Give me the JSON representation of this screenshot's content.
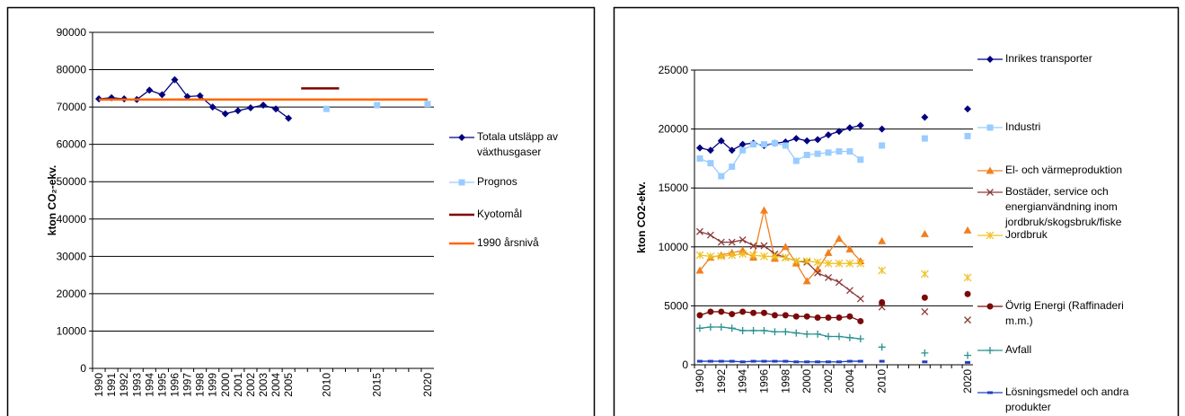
{
  "chart_data": [
    {
      "type": "line",
      "ylabel": "kton CO₂-ekv.",
      "categories": [
        "1990",
        "1991",
        "1992",
        "1993",
        "1994",
        "1995",
        "1996",
        "1997",
        "1998",
        "1999",
        "2000",
        "2001",
        "2002",
        "2003",
        "2004",
        "2005",
        null,
        null,
        "2010",
        null,
        null,
        null,
        "2015",
        null,
        null,
        null,
        "2020"
      ],
      "ylim": [
        0,
        90000
      ],
      "yticks": [
        0,
        10000,
        20000,
        30000,
        40000,
        50000,
        60000,
        70000,
        80000,
        90000
      ],
      "grid": true,
      "legend": "right",
      "series": [
        {
          "name": "Totala utsläpp av växthusgaser",
          "color": "#000080",
          "marker": "diamond",
          "line": true,
          "values": [
            72200,
            72500,
            72200,
            72000,
            74500,
            73300,
            77300,
            72800,
            73000,
            70000,
            68200,
            69000,
            69800,
            70500,
            69500,
            67000,
            null,
            null,
            null,
            null,
            null,
            null,
            null,
            null,
            null,
            null,
            null
          ]
        },
        {
          "name": "Prognos",
          "color": "#99ccff",
          "marker": "square",
          "line": false,
          "values": [
            null,
            null,
            null,
            null,
            null,
            null,
            null,
            null,
            null,
            null,
            null,
            null,
            null,
            null,
            null,
            null,
            null,
            null,
            69500,
            null,
            null,
            null,
            70500,
            null,
            null,
            null,
            70800
          ]
        },
        {
          "name": "Kyotomål",
          "color": "#800000",
          "marker": "none",
          "line": true,
          "values": [
            null,
            null,
            null,
            null,
            null,
            null,
            null,
            null,
            null,
            null,
            null,
            null,
            null,
            null,
            null,
            null,
            75000,
            75000,
            75000,
            75000,
            null,
            null,
            null,
            null,
            null,
            null,
            null
          ]
        },
        {
          "name": "1990 årsnivå",
          "color": "#ff6600",
          "marker": "none",
          "line": true,
          "values": [
            72000,
            72000,
            72000,
            72000,
            72000,
            72000,
            72000,
            72000,
            72000,
            72000,
            72000,
            72000,
            72000,
            72000,
            72000,
            72000,
            72000,
            72000,
            72000,
            72000,
            72000,
            72000,
            72000,
            72000,
            72000,
            72000,
            72000
          ]
        }
      ]
    },
    {
      "type": "line",
      "ylabel": "kton CO2-ekv.",
      "categories": [
        "1990",
        null,
        "1992",
        null,
        "1994",
        null,
        "1996",
        null,
        "1998",
        null,
        "2000",
        null,
        "2002",
        null,
        "2004",
        null,
        null,
        "2010",
        null,
        null,
        null,
        null,
        null,
        null,
        null,
        "2020"
      ],
      "ylim": [
        0,
        25000
      ],
      "yticks": [
        0,
        5000,
        10000,
        15000,
        20000,
        25000
      ],
      "grid": true,
      "legend": "right",
      "series": [
        {
          "name": "Inrikes transporter",
          "color": "#000080",
          "marker": "diamond",
          "line": true,
          "values": [
            18400,
            18200,
            19000,
            18200,
            18700,
            18800,
            18600,
            18800,
            18900,
            19200,
            19000,
            19100,
            19500,
            19800,
            20100,
            20300,
            null,
            20000,
            null,
            null,
            null,
            21000,
            null,
            null,
            null,
            21700
          ]
        },
        {
          "name": "Industri",
          "color": "#99ccff",
          "marker": "square",
          "line": true,
          "values": [
            17500,
            17100,
            16000,
            16800,
            18200,
            18700,
            18700,
            18800,
            18600,
            17300,
            17800,
            17900,
            18000,
            18100,
            18100,
            17400,
            null,
            18600,
            null,
            null,
            null,
            19200,
            null,
            null,
            null,
            19400
          ]
        },
        {
          "name": "El- och värmeproduktion",
          "color": "#f07f20",
          "marker": "triangle",
          "line": true,
          "values": [
            8000,
            9100,
            9300,
            9500,
            9700,
            9100,
            13100,
            9000,
            10000,
            8600,
            7100,
            8100,
            9500,
            10700,
            9800,
            8800,
            null,
            10500,
            null,
            null,
            null,
            11100,
            null,
            null,
            null,
            11400
          ]
        },
        {
          "name": "Bostäder, service och energianvändning inom jordbruk/skogsbruk/fiske",
          "color": "#8b3a3a",
          "marker": "x",
          "line": true,
          "values": [
            11300,
            11000,
            10400,
            10400,
            10600,
            10100,
            10100,
            9400,
            9100,
            8800,
            8700,
            7800,
            7400,
            7000,
            6300,
            5600,
            null,
            4900,
            null,
            null,
            null,
            4500,
            null,
            null,
            null,
            3800
          ]
        },
        {
          "name": "Jordbruk",
          "color": "#f0c020",
          "marker": "asterisk",
          "line": true,
          "values": [
            9300,
            9200,
            9200,
            9300,
            9400,
            9300,
            9200,
            9200,
            9100,
            8800,
            8800,
            8700,
            8600,
            8600,
            8600,
            8600,
            null,
            8000,
            null,
            null,
            null,
            7700,
            null,
            null,
            null,
            7400
          ]
        },
        {
          "name": "Övrig Energi (Raffinaderi m.m.)",
          "color": "#7a0a0a",
          "marker": "circle",
          "line": true,
          "values": [
            4200,
            4500,
            4500,
            4300,
            4500,
            4400,
            4400,
            4200,
            4200,
            4100,
            4100,
            4000,
            4000,
            4000,
            4100,
            3700,
            null,
            5300,
            null,
            null,
            null,
            5700,
            null,
            null,
            null,
            6000
          ]
        },
        {
          "name": "Avfall",
          "color": "#2a9090",
          "marker": "plus",
          "line": true,
          "values": [
            3100,
            3200,
            3200,
            3100,
            2900,
            2900,
            2900,
            2800,
            2800,
            2700,
            2600,
            2600,
            2400,
            2400,
            2300,
            2200,
            null,
            1500,
            null,
            null,
            null,
            1000,
            null,
            null,
            null,
            800
          ]
        },
        {
          "name": "Lösningsmedel och andra produkter",
          "color": "#2040c0",
          "marker": "dash",
          "line": true,
          "values": [
            300,
            300,
            300,
            300,
            250,
            300,
            300,
            300,
            300,
            250,
            250,
            250,
            250,
            250,
            300,
            300,
            null,
            300,
            null,
            null,
            null,
            250,
            null,
            null,
            null,
            200
          ]
        }
      ]
    }
  ]
}
